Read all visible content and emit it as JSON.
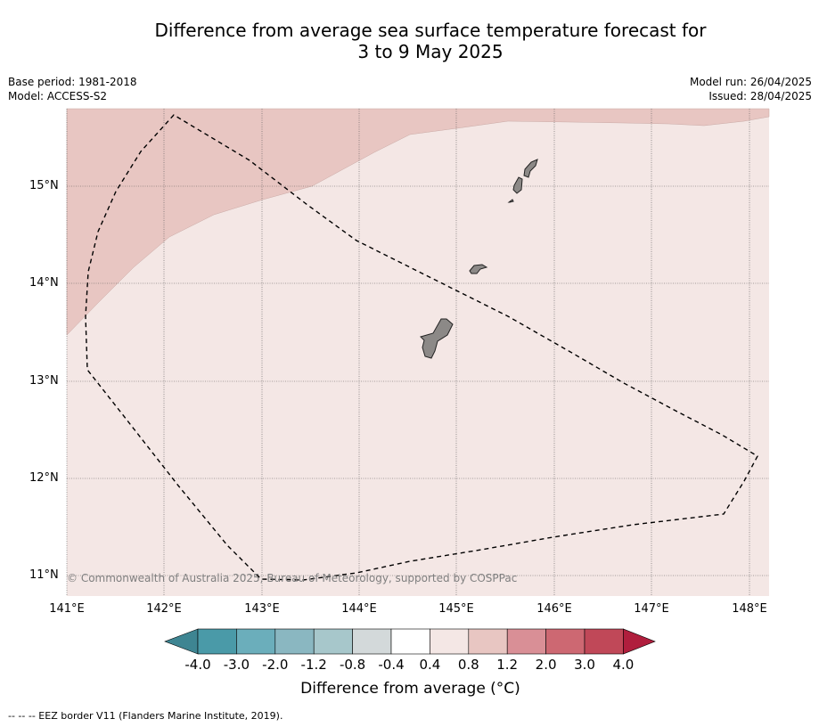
{
  "title": {
    "line1": "Difference from average sea surface temperature forecast for",
    "line2": "3 to 9 May 2025"
  },
  "meta": {
    "base_period": "Base period: 1981-2018",
    "model": "Model: ACCESS-S2",
    "model_run": "Model run: 26/04/2025",
    "issued": "Issued: 28/04/2025"
  },
  "map": {
    "lat_labels": [
      "15°N",
      "14°N",
      "13°N",
      "12°N",
      "11°N"
    ],
    "lon_labels": [
      "141°E",
      "142°E",
      "143°E",
      "144°E",
      "145°E",
      "146°E",
      "147°E",
      "148°E"
    ],
    "copyright": "© Commonwealth of Australia 2025, Bureau of Meteorology, supported by COSPPac",
    "colors": {
      "anomaly_0_4_to_0_8": "#f4e7e5",
      "anomaly_0_8_to_1_2": "#e8c6c2",
      "land": "#8c8987",
      "eez_border": "#000000",
      "grid": "#555555"
    }
  },
  "colorbar": {
    "ticks": [
      "-4.0",
      "-3.0",
      "-2.0",
      "-1.2",
      "-0.8",
      "-0.4",
      "0.4",
      "0.8",
      "1.2",
      "2.0",
      "3.0",
      "4.0"
    ],
    "colors": [
      "#4a9aa8",
      "#6baebb",
      "#8ab7c1",
      "#a7c7cb",
      "#d3d9da",
      "#ffffff",
      "#f4e7e5",
      "#e8c6c2",
      "#d98f96",
      "#cd6872",
      "#c04858"
    ],
    "under_color": "#3e8592",
    "over_color": "#b01e3d",
    "title": "Difference from average (°C)"
  },
  "footnote": "--  --  -- EEZ border V11 (Flanders Marine Institute, 2019)."
}
